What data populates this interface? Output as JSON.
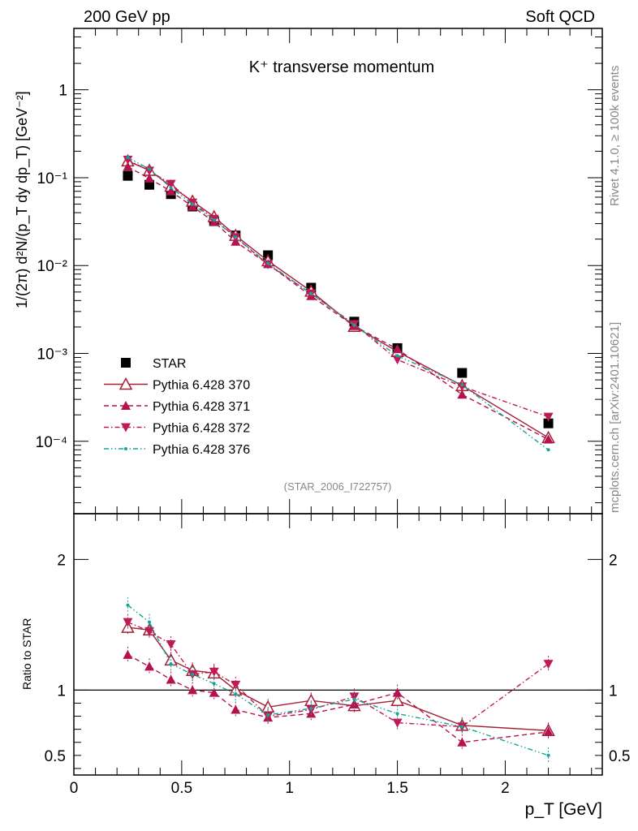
{
  "header": {
    "left": "200 GeV pp",
    "right": "Soft QCD"
  },
  "side_text": {
    "top": "Rivet 4.1.0, ≥ 100k events",
    "bottom": "mcplots.cern.ch [arXiv:2401.10621]"
  },
  "analysis_id": "(STAR_2006_I722757)",
  "chart_data": [
    {
      "type": "scatter",
      "panel": "main",
      "title": "K⁺ transverse momentum",
      "ylabel": "1/(2π)  d²N/(p_T dy dp_T) [GeV⁻²]",
      "yscale": "log",
      "ylim": [
        1.5e-05,
        5
      ],
      "xlim": [
        0,
        2.45
      ],
      "yticks": [
        {
          "value": 1,
          "label": "1"
        },
        {
          "value": 0.1,
          "label": "10⁻¹"
        },
        {
          "value": 0.01,
          "label": "10⁻²"
        },
        {
          "value": 0.001,
          "label": "10⁻³"
        },
        {
          "value": 0.0001,
          "label": "10⁻⁴"
        }
      ],
      "x": [
        0.25,
        0.35,
        0.45,
        0.55,
        0.65,
        0.75,
        0.9,
        1.1,
        1.3,
        1.5,
        1.8,
        2.2
      ],
      "series": [
        {
          "name": "STAR",
          "color": "#000000",
          "marker": "square",
          "line": "none",
          "values": [
            0.105,
            0.083,
            0.065,
            0.047,
            0.032,
            0.022,
            0.0131,
            0.0056,
            0.0023,
            0.00115,
            0.0006,
            0.00016
          ]
        },
        {
          "name": "Pythia 6.428 370",
          "color": "#a31f34",
          "marker": "triangle-open",
          "line": "solid",
          "values": [
            0.155,
            0.121,
            0.08,
            0.054,
            0.036,
            0.022,
            0.0113,
            0.0051,
            0.00203,
            0.00105,
            0.00043,
            0.00011
          ]
        },
        {
          "name": "Pythia 6.428 371",
          "color": "#b5124f",
          "marker": "triangle",
          "line": "dashed",
          "values": [
            0.133,
            0.098,
            0.07,
            0.047,
            0.0315,
            0.0187,
            0.0104,
            0.0045,
            0.00205,
            0.00112,
            0.00034,
            0.000105
          ]
        },
        {
          "name": "Pythia 6.428 372",
          "color": "#c01a55",
          "marker": "triangle-down",
          "line": "dashdot",
          "values": [
            0.16,
            0.12,
            0.085,
            0.052,
            0.034,
            0.021,
            0.0103,
            0.0048,
            0.00215,
            0.00085,
            0.00042,
            0.00019
          ]
        },
        {
          "name": "Pythia 6.428 376",
          "color": "#17a398",
          "marker": "dot",
          "line": "dashdotdot",
          "values": [
            0.17,
            0.125,
            0.077,
            0.05,
            0.033,
            0.021,
            0.0106,
            0.0048,
            0.0021,
            0.00094,
            0.00044,
            8e-05
          ]
        }
      ]
    },
    {
      "type": "line",
      "panel": "ratio",
      "ylabel": "Ratio to STAR",
      "xlabel": "p_T [GeV]",
      "ylim": [
        0.35,
        2.35
      ],
      "xlim": [
        0,
        2.45
      ],
      "yticks": [
        {
          "value": 2,
          "label": "2"
        },
        {
          "value": 1,
          "label": "1"
        },
        {
          "value": 0.5,
          "label": "0.5"
        }
      ],
      "xticks": [
        {
          "value": 0,
          "label": "0"
        },
        {
          "value": 0.5,
          "label": "0.5"
        },
        {
          "value": 1,
          "label": "1"
        },
        {
          "value": 1.5,
          "label": "1.5"
        },
        {
          "value": 2,
          "label": "2"
        }
      ],
      "x": [
        0.25,
        0.35,
        0.45,
        0.55,
        0.65,
        0.75,
        0.9,
        1.1,
        1.3,
        1.5,
        1.8,
        2.2
      ],
      "series": [
        {
          "name": "Pythia 6.428 370",
          "values": [
            1.48,
            1.46,
            1.23,
            1.15,
            1.13,
            1.0,
            0.87,
            0.92,
            0.88,
            0.92,
            0.73,
            0.69
          ]
        },
        {
          "name": "Pythia 6.428 371",
          "values": [
            1.27,
            1.18,
            1.08,
            1.0,
            0.98,
            0.85,
            0.79,
            0.82,
            0.89,
            0.98,
            0.6,
            0.68
          ]
        },
        {
          "name": "Pythia 6.428 372",
          "values": [
            1.52,
            1.45,
            1.35,
            1.12,
            1.14,
            1.04,
            0.8,
            0.85,
            0.95,
            0.75,
            0.72,
            1.2
          ]
        },
        {
          "name": "Pythia 6.428 376",
          "values": [
            1.65,
            1.52,
            1.2,
            1.12,
            1.05,
            0.97,
            0.81,
            0.86,
            0.93,
            0.82,
            0.72,
            0.5
          ]
        }
      ]
    }
  ]
}
